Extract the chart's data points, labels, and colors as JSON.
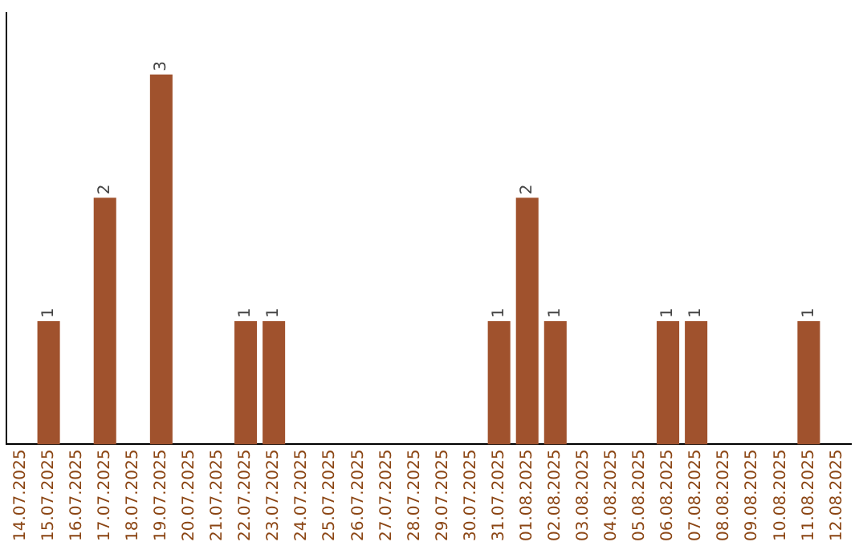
{
  "chart_data": {
    "type": "bar",
    "categories": [
      "14.07.2025",
      "15.07.2025",
      "16.07.2025",
      "17.07.2025",
      "18.07.2025",
      "19.07.2025",
      "20.07.2025",
      "21.07.2025",
      "22.07.2025",
      "23.07.2025",
      "24.07.2025",
      "25.07.2025",
      "26.07.2025",
      "27.07.2025",
      "28.07.2025",
      "29.07.2025",
      "30.07.2025",
      "31.07.2025",
      "01.08.2025",
      "02.08.2025",
      "03.08.2025",
      "04.08.2025",
      "05.08.2025",
      "06.08.2025",
      "07.08.2025",
      "08.08.2025",
      "09.08.2025",
      "10.08.2025",
      "11.08.2025",
      "12.08.2025"
    ],
    "values": [
      0,
      1,
      0,
      2,
      0,
      3,
      0,
      0,
      1,
      1,
      0,
      0,
      0,
      0,
      0,
      0,
      0,
      1,
      2,
      1,
      0,
      0,
      0,
      1,
      1,
      0,
      0,
      0,
      1,
      0
    ],
    "value_labels": [
      null,
      "1",
      null,
      "2",
      null,
      "3",
      null,
      null,
      "1",
      "1",
      null,
      null,
      null,
      null,
      null,
      null,
      null,
      "1",
      "2",
      "1",
      null,
      null,
      null,
      "1",
      "1",
      null,
      null,
      null,
      "1",
      null
    ],
    "color": "#a0522d",
    "tick_labels": "x",
    "grid": false,
    "legend": false
  }
}
